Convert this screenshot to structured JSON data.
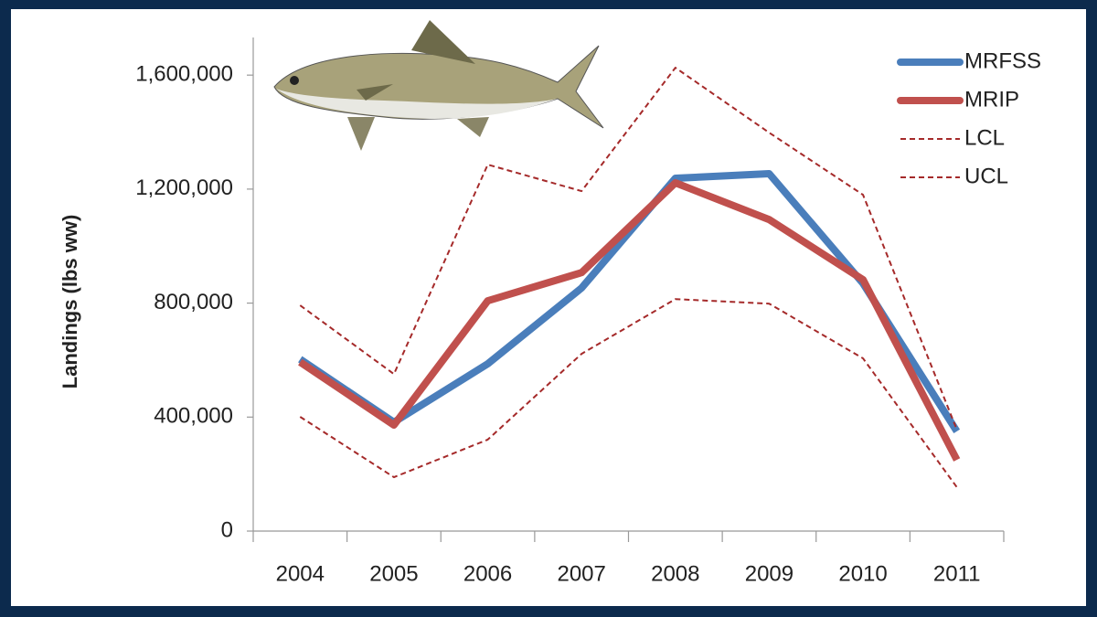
{
  "chart_data": {
    "type": "line",
    "y_label": "Landings (lbs ww)",
    "categories": [
      "2004",
      "2005",
      "2006",
      "2007",
      "2008",
      "2009",
      "2010",
      "2011"
    ],
    "series": [
      {
        "name": "MRFSS",
        "color": "#4a7ebb",
        "style": "solid",
        "values": [
          603000,
          382000,
          587000,
          853000,
          1238000,
          1254000,
          869000,
          350000
        ]
      },
      {
        "name": "MRIP",
        "color": "#c0504d",
        "style": "solid",
        "values": [
          593000,
          372000,
          808000,
          907000,
          1222000,
          1093000,
          882000,
          250000
        ]
      },
      {
        "name": "LCL",
        "color": "#a52a2a",
        "style": "dashed",
        "values": [
          401000,
          189000,
          321000,
          622000,
          814000,
          798000,
          606000,
          154000
        ]
      },
      {
        "name": "UCL",
        "color": "#a52a2a",
        "style": "dashed",
        "values": [
          792000,
          551000,
          1286000,
          1193000,
          1626000,
          1398000,
          1180000,
          356000
        ]
      }
    ],
    "ylim": [
      0,
      1700000
    ],
    "yticks": [
      0,
      {
        "value": 400000,
        "label": "400,000"
      },
      {
        "value": 800000,
        "label": "800,000"
      },
      {
        "value": 1200000,
        "label": "1,200,000"
      },
      {
        "value": 1600000,
        "label": "1,600,000"
      }
    ],
    "grid": false,
    "legend": "top-right"
  }
}
